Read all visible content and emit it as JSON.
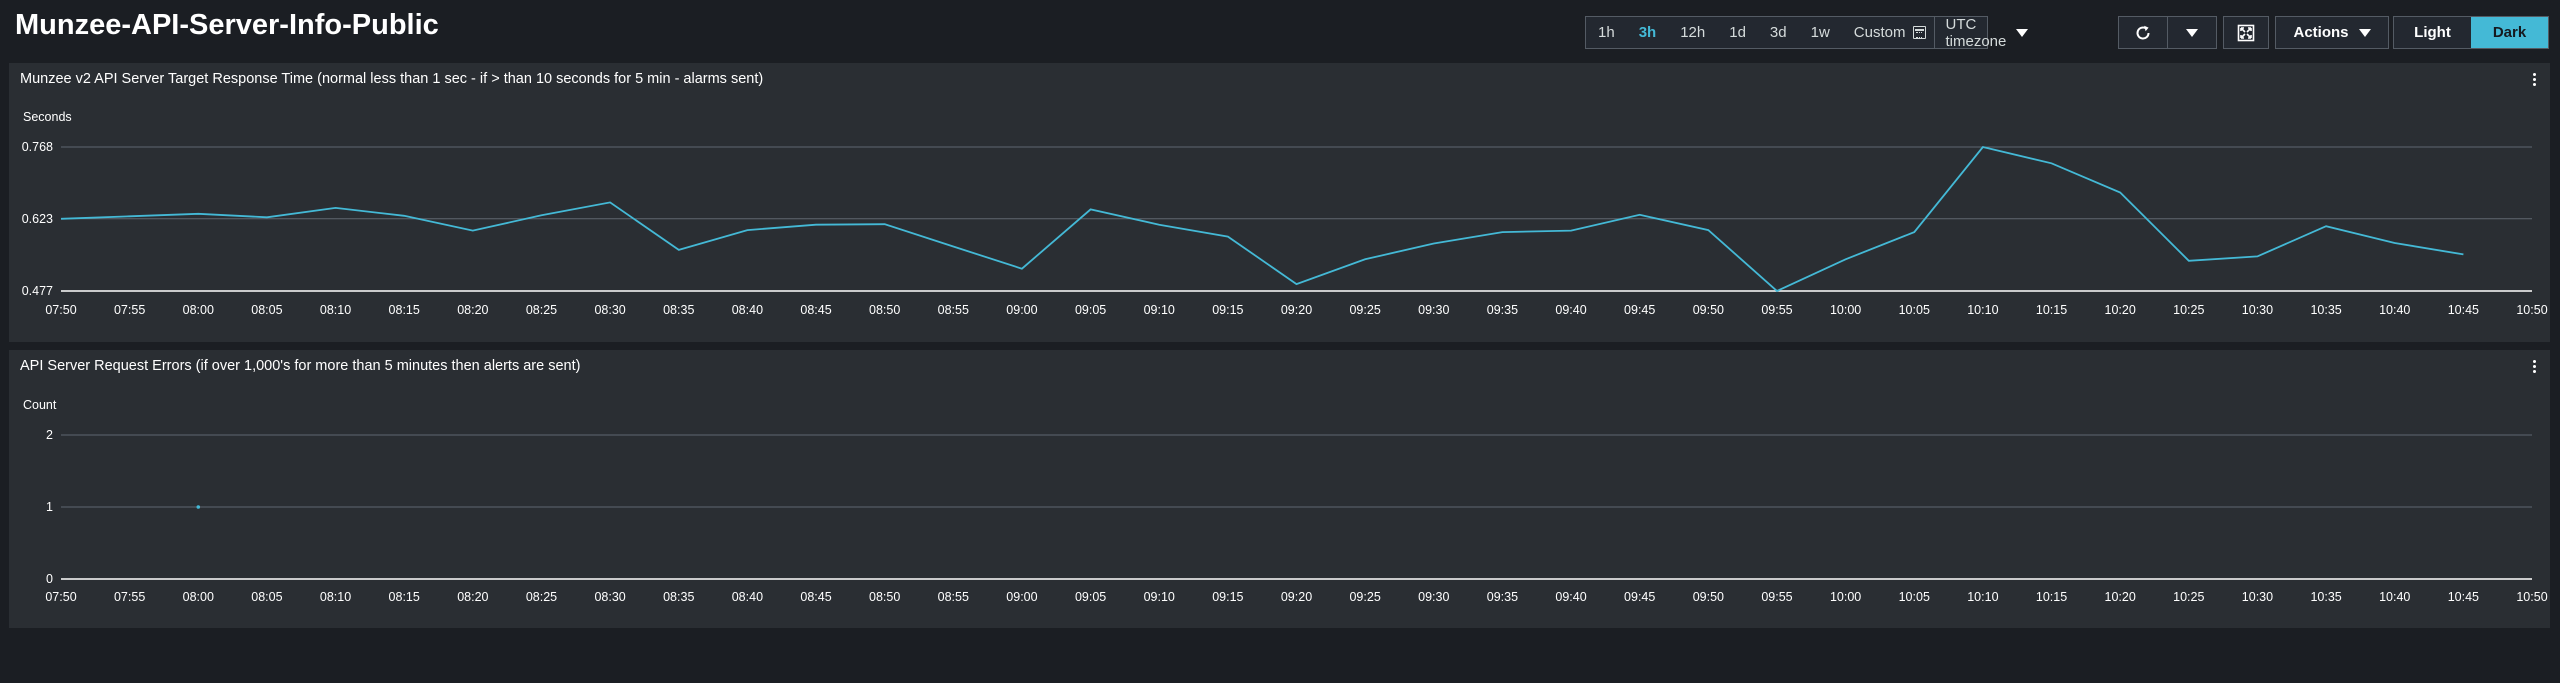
{
  "page": {
    "title": "Munzee-API-Server-Info-Public",
    "background": "#1b1e23"
  },
  "toolbar": {
    "ranges": [
      "1h",
      "3h",
      "12h",
      "1d",
      "3d",
      "1w"
    ],
    "active_range": "3h",
    "custom_label": "Custom",
    "timezone_label": "UTC timezone",
    "actions_label": "Actions",
    "theme_light_label": "Light",
    "theme_dark_label": "Dark",
    "active_theme": "Dark",
    "accent_color": "#44b9d6",
    "icons": {
      "calendar": "calendar-icon",
      "refresh": "refresh-icon",
      "dropdown": "caret-down-icon",
      "fullscreen": "fullscreen-icon"
    }
  },
  "widgets": [
    {
      "title": "Munzee v2 API Server Target Response Time (normal less than 1 sec - if > than 10 seconds for 5 min - alarms sent)",
      "menu_icon": "more-vertical-icon"
    },
    {
      "title": "API Server Request Errors (if over 1,000's for more than 5 minutes then alerts are sent)",
      "menu_icon": "more-vertical-icon"
    }
  ],
  "chart_data": [
    {
      "type": "line",
      "ylabel": "Seconds",
      "yticks": [
        "0.477",
        "0.623",
        "0.768"
      ],
      "ylim": [
        0.477,
        0.768
      ],
      "x_ticks": [
        "07:50",
        "07:55",
        "08:00",
        "08:05",
        "08:10",
        "08:15",
        "08:20",
        "08:25",
        "08:30",
        "08:35",
        "08:40",
        "08:45",
        "08:50",
        "08:55",
        "09:00",
        "09:05",
        "09:10",
        "09:15",
        "09:20",
        "09:25",
        "09:30",
        "09:35",
        "09:40",
        "09:45",
        "09:50",
        "09:55",
        "10:00",
        "10:05",
        "10:10",
        "10:15",
        "10:20",
        "10:25",
        "10:30",
        "10:35",
        "10:40",
        "10:45",
        "10:50"
      ],
      "grid": true,
      "series": [
        {
          "color": "#44b9d6",
          "x": [
            "07:50",
            "07:55",
            "08:00",
            "08:05",
            "08:10",
            "08:15",
            "08:20",
            "08:25",
            "08:30",
            "08:35",
            "08:40",
            "08:45",
            "08:50",
            "08:55",
            "09:00",
            "09:05",
            "09:10",
            "09:15",
            "09:20",
            "09:25",
            "09:30",
            "09:35",
            "09:40",
            "09:45",
            "09:50",
            "09:55",
            "10:00",
            "10:05",
            "10:10",
            "10:15",
            "10:20",
            "10:25",
            "10:30",
            "10:35",
            "10:40",
            "10:45"
          ],
          "values": [
            0.623,
            0.628,
            0.633,
            0.626,
            0.645,
            0.629,
            0.599,
            0.63,
            0.656,
            0.56,
            0.6,
            0.611,
            0.612,
            0.567,
            0.522,
            0.642,
            0.611,
            0.587,
            0.491,
            0.541,
            0.573,
            0.596,
            0.599,
            0.631,
            0.6,
            0.477,
            0.541,
            0.596,
            0.768,
            0.735,
            0.676,
            0.538,
            0.547,
            0.608,
            0.574,
            0.551
          ]
        }
      ]
    },
    {
      "type": "scatter",
      "ylabel": "Count",
      "yticks": [
        "0",
        "1",
        "2"
      ],
      "ylim": [
        0,
        2
      ],
      "x_ticks": [
        "07:50",
        "07:55",
        "08:00",
        "08:05",
        "08:10",
        "08:15",
        "08:20",
        "08:25",
        "08:30",
        "08:35",
        "08:40",
        "08:45",
        "08:50",
        "08:55",
        "09:00",
        "09:05",
        "09:10",
        "09:15",
        "09:20",
        "09:25",
        "09:30",
        "09:35",
        "09:40",
        "09:45",
        "09:50",
        "09:55",
        "10:00",
        "10:05",
        "10:10",
        "10:15",
        "10:20",
        "10:25",
        "10:30",
        "10:35",
        "10:40",
        "10:45",
        "10:50"
      ],
      "grid": true,
      "series": [
        {
          "color": "#44b9d6",
          "x": [
            "08:00"
          ],
          "values": [
            1
          ]
        }
      ]
    }
  ]
}
